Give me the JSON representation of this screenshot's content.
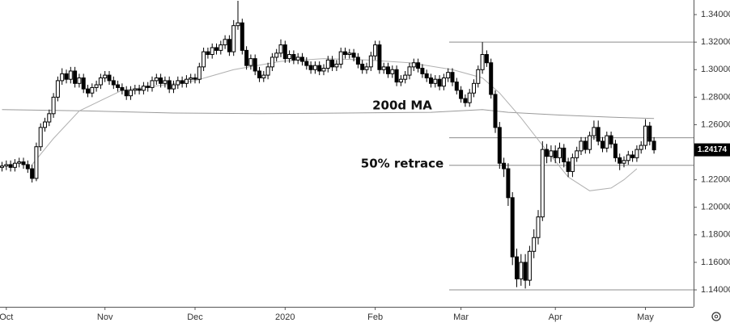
{
  "chart_data": {
    "type": "candlestick",
    "categories": [
      null,
      "Oct",
      null,
      null,
      null,
      null,
      null,
      null,
      null,
      null,
      null,
      null,
      null,
      null,
      null,
      null,
      null,
      null,
      null,
      null,
      null,
      null,
      null,
      null,
      "Nov",
      null,
      null,
      null,
      null,
      null,
      null,
      null,
      null,
      null,
      null,
      null,
      null,
      null,
      null,
      null,
      null,
      null,
      null,
      null,
      null,
      "Dec",
      null,
      null,
      null,
      null,
      null,
      null,
      null,
      null,
      null,
      null,
      null,
      null,
      null,
      null,
      null,
      null,
      null,
      null,
      null,
      null,
      "2020",
      null,
      null,
      null,
      null,
      null,
      null,
      null,
      null,
      null,
      null,
      null,
      null,
      null,
      null,
      null,
      null,
      null,
      null,
      null,
      null,
      "Feb",
      null,
      null,
      null,
      null,
      null,
      null,
      null,
      null,
      null,
      null,
      null,
      null,
      null,
      null,
      null,
      null,
      null,
      null,
      null,
      "Mar",
      null,
      null,
      null,
      null,
      null,
      null,
      null,
      null,
      null,
      null,
      null,
      null,
      null,
      null,
      null,
      null,
      null,
      null,
      null,
      null,
      null,
      "Apr",
      null,
      null,
      null,
      null,
      null,
      null,
      null,
      null,
      null,
      null,
      null,
      null,
      null,
      null,
      null,
      null,
      null,
      null,
      null,
      null,
      "May",
      null,
      null
    ],
    "open": [
      1.229,
      1.23,
      1.231,
      1.229,
      1.232,
      1.233,
      1.231,
      1.228,
      1.221,
      1.244,
      1.258,
      1.262,
      1.268,
      1.28,
      1.292,
      1.297,
      1.293,
      1.299,
      1.29,
      1.294,
      1.286,
      1.283,
      1.287,
      1.289,
      1.294,
      1.296,
      1.292,
      1.289,
      1.287,
      1.285,
      1.281,
      1.285,
      1.286,
      1.285,
      1.288,
      1.287,
      1.292,
      1.294,
      1.29,
      1.292,
      1.286,
      1.289,
      1.292,
      1.29,
      1.293,
      1.294,
      1.293,
      1.302,
      1.313,
      1.311,
      1.316,
      1.314,
      1.318,
      1.322,
      1.313,
      1.332,
      1.334,
      1.314,
      1.303,
      1.308,
      1.299,
      1.294,
      1.296,
      1.302,
      1.309,
      1.312,
      1.318,
      1.308,
      1.311,
      1.307,
      1.309,
      1.306,
      1.303,
      1.3,
      1.303,
      1.299,
      1.301,
      1.307,
      1.302,
      1.304,
      1.313,
      1.311,
      1.312,
      1.309,
      1.304,
      1.3,
      1.302,
      1.31,
      1.318,
      1.3,
      1.302,
      1.297,
      1.3,
      1.291,
      1.293,
      1.296,
      1.302,
      1.305,
      1.301,
      1.297,
      1.294,
      1.29,
      1.293,
      1.288,
      1.294,
      1.298,
      1.291,
      1.285,
      1.279,
      1.276,
      1.283,
      1.29,
      1.3,
      1.311,
      1.305,
      1.282,
      1.258,
      1.232,
      1.228,
      1.207,
      1.164,
      1.148,
      1.16,
      1.147,
      1.168,
      1.178,
      1.193,
      1.242,
      1.237,
      1.241,
      1.236,
      1.243,
      1.233,
      1.226,
      1.236,
      1.241,
      1.248,
      1.242,
      1.252,
      1.258,
      1.248,
      1.243,
      1.252,
      1.246,
      1.236,
      1.232,
      1.234,
      1.238,
      1.236,
      1.242,
      1.245,
      1.259,
      1.248
    ],
    "high": [
      1.233,
      1.234,
      1.234,
      1.235,
      1.236,
      1.236,
      1.234,
      1.231,
      1.247,
      1.261,
      1.265,
      1.271,
      1.283,
      1.295,
      1.301,
      1.3,
      1.302,
      1.302,
      1.297,
      1.297,
      1.289,
      1.29,
      1.292,
      1.297,
      1.299,
      1.299,
      1.295,
      1.292,
      1.29,
      1.288,
      1.288,
      1.289,
      1.289,
      1.291,
      1.291,
      1.295,
      1.297,
      1.297,
      1.295,
      1.295,
      1.292,
      1.295,
      1.295,
      1.296,
      1.297,
      1.297,
      1.305,
      1.316,
      1.316,
      1.319,
      1.319,
      1.321,
      1.325,
      1.325,
      1.336,
      1.35,
      1.337,
      1.317,
      1.311,
      1.311,
      1.302,
      1.299,
      1.305,
      1.312,
      1.315,
      1.322,
      1.321,
      1.314,
      1.314,
      1.312,
      1.312,
      1.309,
      1.306,
      1.306,
      1.306,
      1.304,
      1.31,
      1.31,
      1.307,
      1.316,
      1.316,
      1.315,
      1.315,
      1.312,
      1.307,
      1.305,
      1.313,
      1.321,
      1.321,
      1.305,
      1.305,
      1.303,
      1.303,
      1.296,
      1.299,
      1.305,
      1.308,
      1.308,
      1.304,
      1.3,
      1.297,
      1.296,
      1.296,
      1.297,
      1.301,
      1.301,
      1.294,
      1.288,
      1.282,
      1.286,
      1.293,
      1.303,
      1.32,
      1.314,
      1.308,
      1.285,
      1.262,
      1.236,
      1.232,
      1.211,
      1.17,
      1.166,
      1.166,
      1.172,
      1.184,
      1.198,
      1.248,
      1.246,
      1.245,
      1.245,
      1.247,
      1.246,
      1.236,
      1.239,
      1.244,
      1.251,
      1.251,
      1.255,
      1.263,
      1.263,
      1.251,
      1.255,
      1.255,
      1.249,
      1.239,
      1.237,
      1.241,
      1.241,
      1.245,
      1.248,
      1.264,
      1.262,
      1.251
    ],
    "low": [
      1.226,
      1.227,
      1.226,
      1.226,
      1.229,
      1.228,
      1.225,
      1.218,
      1.219,
      1.241,
      1.255,
      1.259,
      1.265,
      1.277,
      1.289,
      1.29,
      1.29,
      1.287,
      1.287,
      1.283,
      1.28,
      1.28,
      1.284,
      1.286,
      1.291,
      1.289,
      1.286,
      1.284,
      1.282,
      1.278,
      1.278,
      1.282,
      1.282,
      1.282,
      1.284,
      1.284,
      1.289,
      1.287,
      1.287,
      1.283,
      1.283,
      1.286,
      1.287,
      1.287,
      1.29,
      1.29,
      1.29,
      1.299,
      1.308,
      1.308,
      1.311,
      1.311,
      1.315,
      1.31,
      1.31,
      1.329,
      1.311,
      1.3,
      1.3,
      1.296,
      1.291,
      1.291,
      1.293,
      1.299,
      1.306,
      1.309,
      1.305,
      1.305,
      1.304,
      1.304,
      1.303,
      1.3,
      1.297,
      1.297,
      1.296,
      1.296,
      1.298,
      1.299,
      1.299,
      1.301,
      1.308,
      1.308,
      1.306,
      1.301,
      1.297,
      1.297,
      1.299,
      1.307,
      1.297,
      1.297,
      1.294,
      1.294,
      1.288,
      1.288,
      1.29,
      1.293,
      1.299,
      1.298,
      1.294,
      1.291,
      1.287,
      1.287,
      1.285,
      1.285,
      1.291,
      1.288,
      1.282,
      1.276,
      1.273,
      1.273,
      1.28,
      1.287,
      1.297,
      1.302,
      1.279,
      1.254,
      1.228,
      1.222,
      1.201,
      1.158,
      1.142,
      1.143,
      1.141,
      1.143,
      1.163,
      1.173,
      1.19,
      1.232,
      1.233,
      1.232,
      1.232,
      1.229,
      1.222,
      1.222,
      1.233,
      1.238,
      1.239,
      1.239,
      1.249,
      1.245,
      1.24,
      1.24,
      1.243,
      1.233,
      1.227,
      1.229,
      1.231,
      1.233,
      1.233,
      1.239,
      1.242,
      1.245,
      1.239
    ],
    "close": [
      1.23,
      1.231,
      1.229,
      1.232,
      1.233,
      1.231,
      1.228,
      1.221,
      1.244,
      1.258,
      1.262,
      1.268,
      1.28,
      1.292,
      1.297,
      1.293,
      1.299,
      1.29,
      1.294,
      1.286,
      1.283,
      1.287,
      1.289,
      1.294,
      1.296,
      1.292,
      1.289,
      1.287,
      1.285,
      1.281,
      1.285,
      1.286,
      1.285,
      1.288,
      1.287,
      1.292,
      1.294,
      1.29,
      1.292,
      1.286,
      1.289,
      1.292,
      1.29,
      1.293,
      1.294,
      1.293,
      1.302,
      1.313,
      1.311,
      1.316,
      1.314,
      1.318,
      1.322,
      1.313,
      1.332,
      1.334,
      1.314,
      1.303,
      1.308,
      1.299,
      1.294,
      1.296,
      1.302,
      1.309,
      1.312,
      1.318,
      1.308,
      1.311,
      1.307,
      1.309,
      1.306,
      1.303,
      1.3,
      1.303,
      1.299,
      1.301,
      1.307,
      1.302,
      1.304,
      1.313,
      1.311,
      1.312,
      1.309,
      1.304,
      1.3,
      1.302,
      1.31,
      1.318,
      1.3,
      1.302,
      1.297,
      1.3,
      1.291,
      1.293,
      1.296,
      1.302,
      1.305,
      1.301,
      1.297,
      1.294,
      1.29,
      1.293,
      1.288,
      1.294,
      1.298,
      1.291,
      1.285,
      1.279,
      1.276,
      1.283,
      1.29,
      1.3,
      1.311,
      1.305,
      1.282,
      1.258,
      1.232,
      1.228,
      1.207,
      1.164,
      1.148,
      1.16,
      1.147,
      1.168,
      1.178,
      1.193,
      1.242,
      1.237,
      1.241,
      1.236,
      1.243,
      1.233,
      1.226,
      1.236,
      1.241,
      1.248,
      1.242,
      1.252,
      1.258,
      1.248,
      1.243,
      1.252,
      1.246,
      1.236,
      1.232,
      1.234,
      1.238,
      1.236,
      1.242,
      1.245,
      1.259,
      1.248,
      1.24174
    ],
    "up_color": "#ffffff",
    "down_color": "#000000",
    "overlays": [
      {
        "color": "#9a9a9a",
        "x": [
          0,
          20,
          40,
          60,
          80,
          100,
          112,
          118,
          130,
          142,
          152
        ],
        "values": [
          1.271,
          1.27,
          1.2685,
          1.268,
          1.2685,
          1.269,
          1.271,
          1.269,
          1.267,
          1.2655,
          1.2645
        ]
      },
      {
        "color": "#b0b0b0",
        "x": [
          7,
          12,
          18,
          28,
          38,
          45,
          54,
          65,
          75,
          85,
          95,
          105,
          112,
          116,
          121,
          126,
          132,
          137,
          142,
          145,
          148
        ],
        "values": [
          1.231,
          1.25,
          1.27,
          1.285,
          1.289,
          1.292,
          1.3,
          1.306,
          1.308,
          1.307,
          1.305,
          1.3,
          1.294,
          1.283,
          1.265,
          1.245,
          1.222,
          1.212,
          1.214,
          1.22,
          1.228
        ]
      }
    ],
    "levels": [
      1.32,
      1.2505,
      1.2305,
      1.14
    ],
    "level_color": "#8c8c8c",
    "annotations": [
      "200d MA",
      "50% retrace"
    ],
    "ylim": [
      1.1277,
      1.3506
    ],
    "yticks": [
      {
        "value": 1.34,
        "label": "1.34000"
      },
      {
        "value": 1.32,
        "label": "1.32000"
      },
      {
        "value": 1.3,
        "label": "1.30000"
      },
      {
        "value": 1.28,
        "label": "1.28000"
      },
      {
        "value": 1.26,
        "label": "1.26000"
      },
      {
        "value": 1.24,
        "label": "1.24000"
      },
      {
        "value": 1.22,
        "label": "1.22000"
      },
      {
        "value": 1.2,
        "label": "1.20000"
      },
      {
        "value": 1.18,
        "label": "1.18000"
      },
      {
        "value": 1.16,
        "label": "1.16000"
      },
      {
        "value": 1.14,
        "label": "1.14000"
      }
    ]
  }
}
